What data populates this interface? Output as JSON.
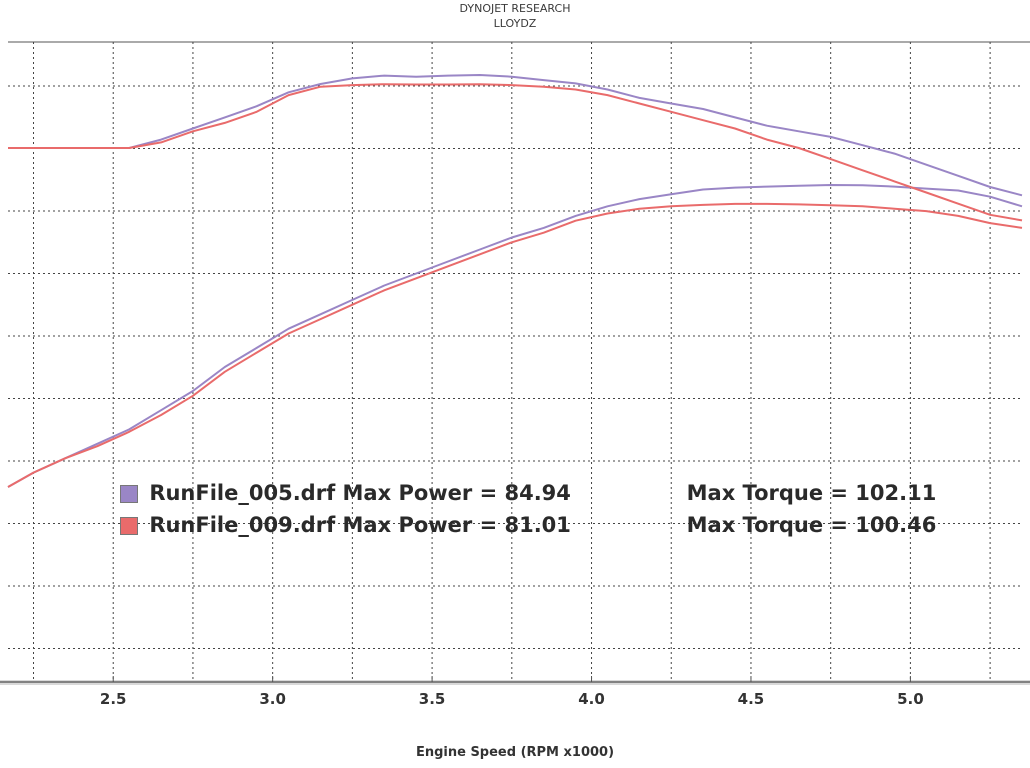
{
  "header": {
    "line1": "DYNOJET RESEARCH",
    "line2": "LLOYDZ"
  },
  "chart_data": {
    "type": "line",
    "xlabel": "Engine Speed (RPM x1000)",
    "xlim": [
      2.17,
      5.35
    ],
    "x_ticks": [
      "2.5",
      "3.0",
      "3.5",
      "4.0",
      "4.5",
      "5.0"
    ],
    "grid": true,
    "y_axis_labels_visible": false,
    "series": [
      {
        "name": "RunFile_005.drf",
        "color": "#9a86c6",
        "curve": "power",
        "x": [
          2.17,
          2.25,
          2.35,
          2.45,
          2.55,
          2.65,
          2.75,
          2.85,
          2.95,
          3.05,
          3.15,
          3.25,
          3.35,
          3.45,
          3.55,
          3.65,
          3.75,
          3.85,
          3.95,
          4.05,
          4.15,
          4.25,
          4.35,
          4.45,
          4.55,
          4.65,
          4.75,
          4.85,
          4.95,
          5.05,
          5.15,
          5.25,
          5.35
        ],
        "y": [
          22,
          25,
          28,
          31,
          34,
          38,
          42,
          47,
          51,
          55,
          58,
          61,
          64,
          66.5,
          69,
          71.5,
          74,
          76,
          78.5,
          80.5,
          82,
          83,
          84,
          84.4,
          84.6,
          84.8,
          84.94,
          84.9,
          84.6,
          84.2,
          83.8,
          82.5,
          80.5
        ]
      },
      {
        "name": "RunFile_009.drf",
        "color": "#e96b6b",
        "curve": "power",
        "x": [
          2.17,
          2.25,
          2.35,
          2.45,
          2.55,
          2.65,
          2.75,
          2.85,
          2.95,
          3.05,
          3.15,
          3.25,
          3.35,
          3.45,
          3.55,
          3.65,
          3.75,
          3.85,
          3.95,
          4.05,
          4.15,
          4.25,
          4.35,
          4.45,
          4.55,
          4.65,
          4.75,
          4.85,
          4.95,
          5.05,
          5.15,
          5.25,
          5.35
        ],
        "y": [
          22,
          25,
          28,
          30.5,
          33.5,
          37,
          41,
          46,
          50,
          54,
          57,
          60,
          63,
          65.5,
          68,
          70.5,
          73,
          75,
          77.5,
          79,
          80,
          80.5,
          80.8,
          81,
          81.01,
          80.9,
          80.7,
          80.5,
          80,
          79.5,
          78.5,
          77,
          76
        ]
      },
      {
        "name": "RunFile_005.drf",
        "color": "#9a86c6",
        "curve": "torque",
        "x": [
          2.17,
          2.25,
          2.35,
          2.45,
          2.55,
          2.65,
          2.75,
          2.85,
          2.95,
          3.05,
          3.15,
          3.25,
          3.35,
          3.45,
          3.55,
          3.65,
          3.75,
          3.85,
          3.95,
          4.05,
          4.15,
          4.25,
          4.35,
          4.45,
          4.55,
          4.65,
          4.75,
          4.85,
          4.95,
          5.05,
          5.15,
          5.25,
          5.35
        ],
        "y": [
          89,
          89,
          89,
          89,
          89,
          90.5,
          92.5,
          94.5,
          96.5,
          99,
          100.5,
          101.5,
          102,
          101.8,
          102,
          102.11,
          101.8,
          101.2,
          100.6,
          99.5,
          98,
          97,
          96,
          94.5,
          93,
          92,
          91,
          89.5,
          88,
          86,
          84,
          82,
          80.5
        ]
      },
      {
        "name": "RunFile_009.drf",
        "color": "#e96b6b",
        "curve": "torque",
        "x": [
          2.17,
          2.25,
          2.35,
          2.45,
          2.55,
          2.65,
          2.75,
          2.85,
          2.95,
          3.05,
          3.15,
          3.25,
          3.35,
          3.45,
          3.55,
          3.65,
          3.75,
          3.85,
          3.95,
          4.05,
          4.15,
          4.25,
          4.35,
          4.45,
          4.55,
          4.65,
          4.75,
          4.85,
          4.95,
          5.05,
          5.15,
          5.25,
          5.35
        ],
        "y": [
          89,
          89,
          89,
          89,
          89,
          90,
          92,
          93.5,
          95.5,
          98.5,
          100,
          100.3,
          100.46,
          100.4,
          100.4,
          100.46,
          100.3,
          100,
          99.5,
          98.5,
          97,
          95.5,
          94,
          92.5,
          90.5,
          89,
          87,
          85,
          83,
          81,
          79,
          77,
          76
        ]
      }
    ]
  },
  "legend": [
    {
      "color": "#9a86c6",
      "file_text": "RunFile_005.drf Max Power = 84.94",
      "torque_text": "Max Torque = 102.11"
    },
    {
      "color": "#e96b6b",
      "file_text": "RunFile_009.drf Max Power = 81.01",
      "torque_text": "Max Torque = 100.46"
    }
  ]
}
